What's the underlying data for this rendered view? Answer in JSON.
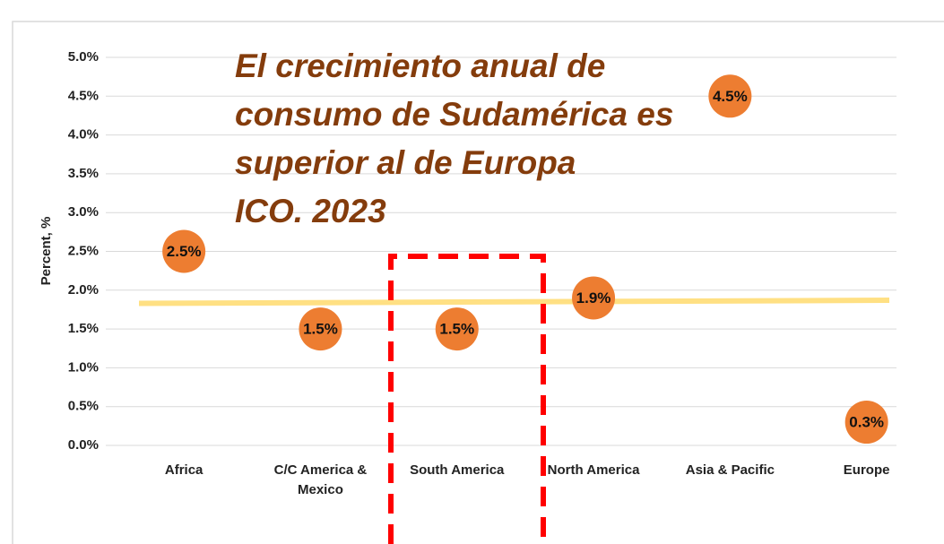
{
  "chart_data": {
    "type": "dot",
    "y_label": "Percent, %",
    "categories": [
      "Africa",
      "C/C America & Mexico",
      "South America",
      "North America",
      "Asia & Pacific",
      "Europe"
    ],
    "values": [
      2.5,
      1.5,
      1.5,
      1.9,
      4.5,
      0.3
    ],
    "value_labels": [
      "2.5%",
      "1.5%",
      "1.5%",
      "1.9%",
      "4.5%",
      "0.3%"
    ],
    "color": "#ed7d31",
    "ylim": [
      0,
      5
    ],
    "yticks": [
      {
        "value": 0,
        "label": "0.0%"
      },
      {
        "value": 0.5,
        "label": "0.5%"
      },
      {
        "value": 1,
        "label": "1.0%"
      },
      {
        "value": 1.5,
        "label": "1.5%"
      },
      {
        "value": 2,
        "label": "2.0%"
      },
      {
        "value": 2.5,
        "label": "2.5%"
      },
      {
        "value": 3,
        "label": "3.0%"
      },
      {
        "value": 3.5,
        "label": "3.5%"
      },
      {
        "value": 4,
        "label": "4.0%"
      },
      {
        "value": 4.5,
        "label": "4.5%"
      },
      {
        "value": 5,
        "label": "5.0%"
      }
    ],
    "grid": true,
    "trend_line": {
      "color": "#ffe083",
      "values": [
        1.83,
        1.87
      ]
    },
    "annotation": {
      "lines": [
        "El crecimiento anual de",
        "consumo de Sudamérica es",
        "superior al de Europa",
        "ICO. 2023"
      ],
      "color": "#843c0c"
    }
  }
}
